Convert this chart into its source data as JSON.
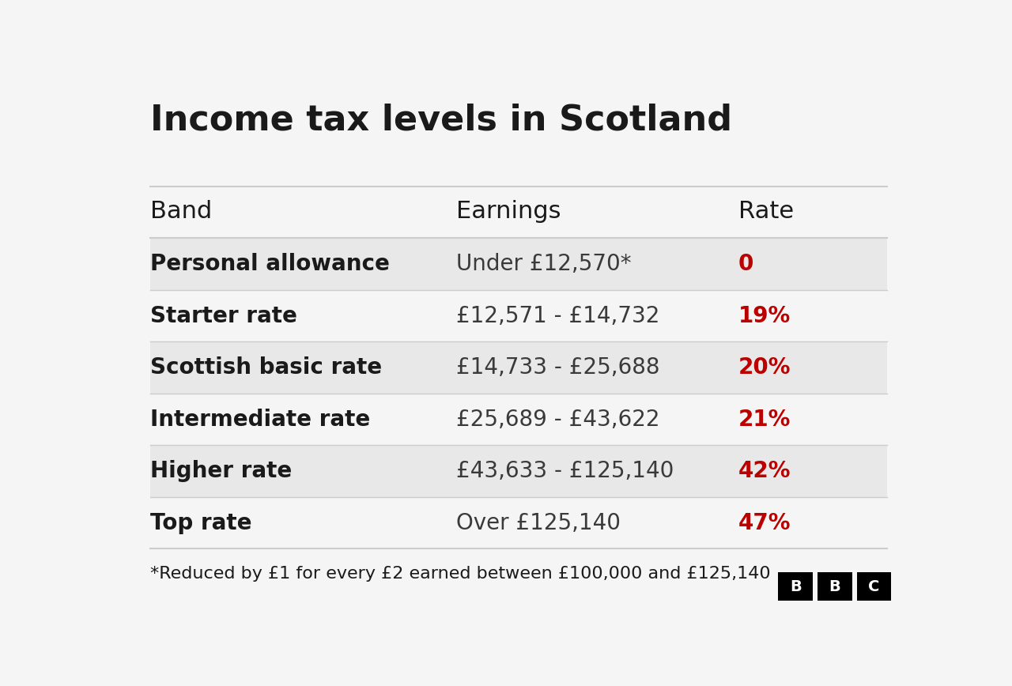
{
  "title": "Income tax levels in Scotland",
  "col_headers": [
    "Band",
    "Earnings",
    "Rate"
  ],
  "rows": [
    {
      "band": "Personal allowance",
      "earnings": "Under £12,570*",
      "rate": "0",
      "shaded": true
    },
    {
      "band": "Starter rate",
      "earnings": "£12,571 - £14,732",
      "rate": "19%",
      "shaded": false
    },
    {
      "band": "Scottish basic rate",
      "earnings": "£14,733 - £25,688",
      "rate": "20%",
      "shaded": true
    },
    {
      "band": "Intermediate rate",
      "earnings": "£25,689 - £43,622",
      "rate": "21%",
      "shaded": false
    },
    {
      "band": "Higher rate",
      "earnings": "£43,633 - £125,140",
      "rate": "42%",
      "shaded": true
    },
    {
      "band": "Top rate",
      "earnings": "Over £125,140",
      "rate": "47%",
      "shaded": false
    }
  ],
  "footnote": "*Reduced by £1 for every £2 earned between £100,000 and £125,140",
  "bg_color": "#f5f5f5",
  "shaded_color": "#e8e8e8",
  "unshaded_color": "#f5f5f5",
  "title_color": "#1a1a1a",
  "band_color": "#1a1a1a",
  "earnings_color": "#3a3a3a",
  "rate_color": "#bb0000",
  "header_text_color": "#1a1a1a",
  "divider_color": "#cccccc",
  "bbc_bg": "#000000",
  "bbc_text": "#ffffff"
}
